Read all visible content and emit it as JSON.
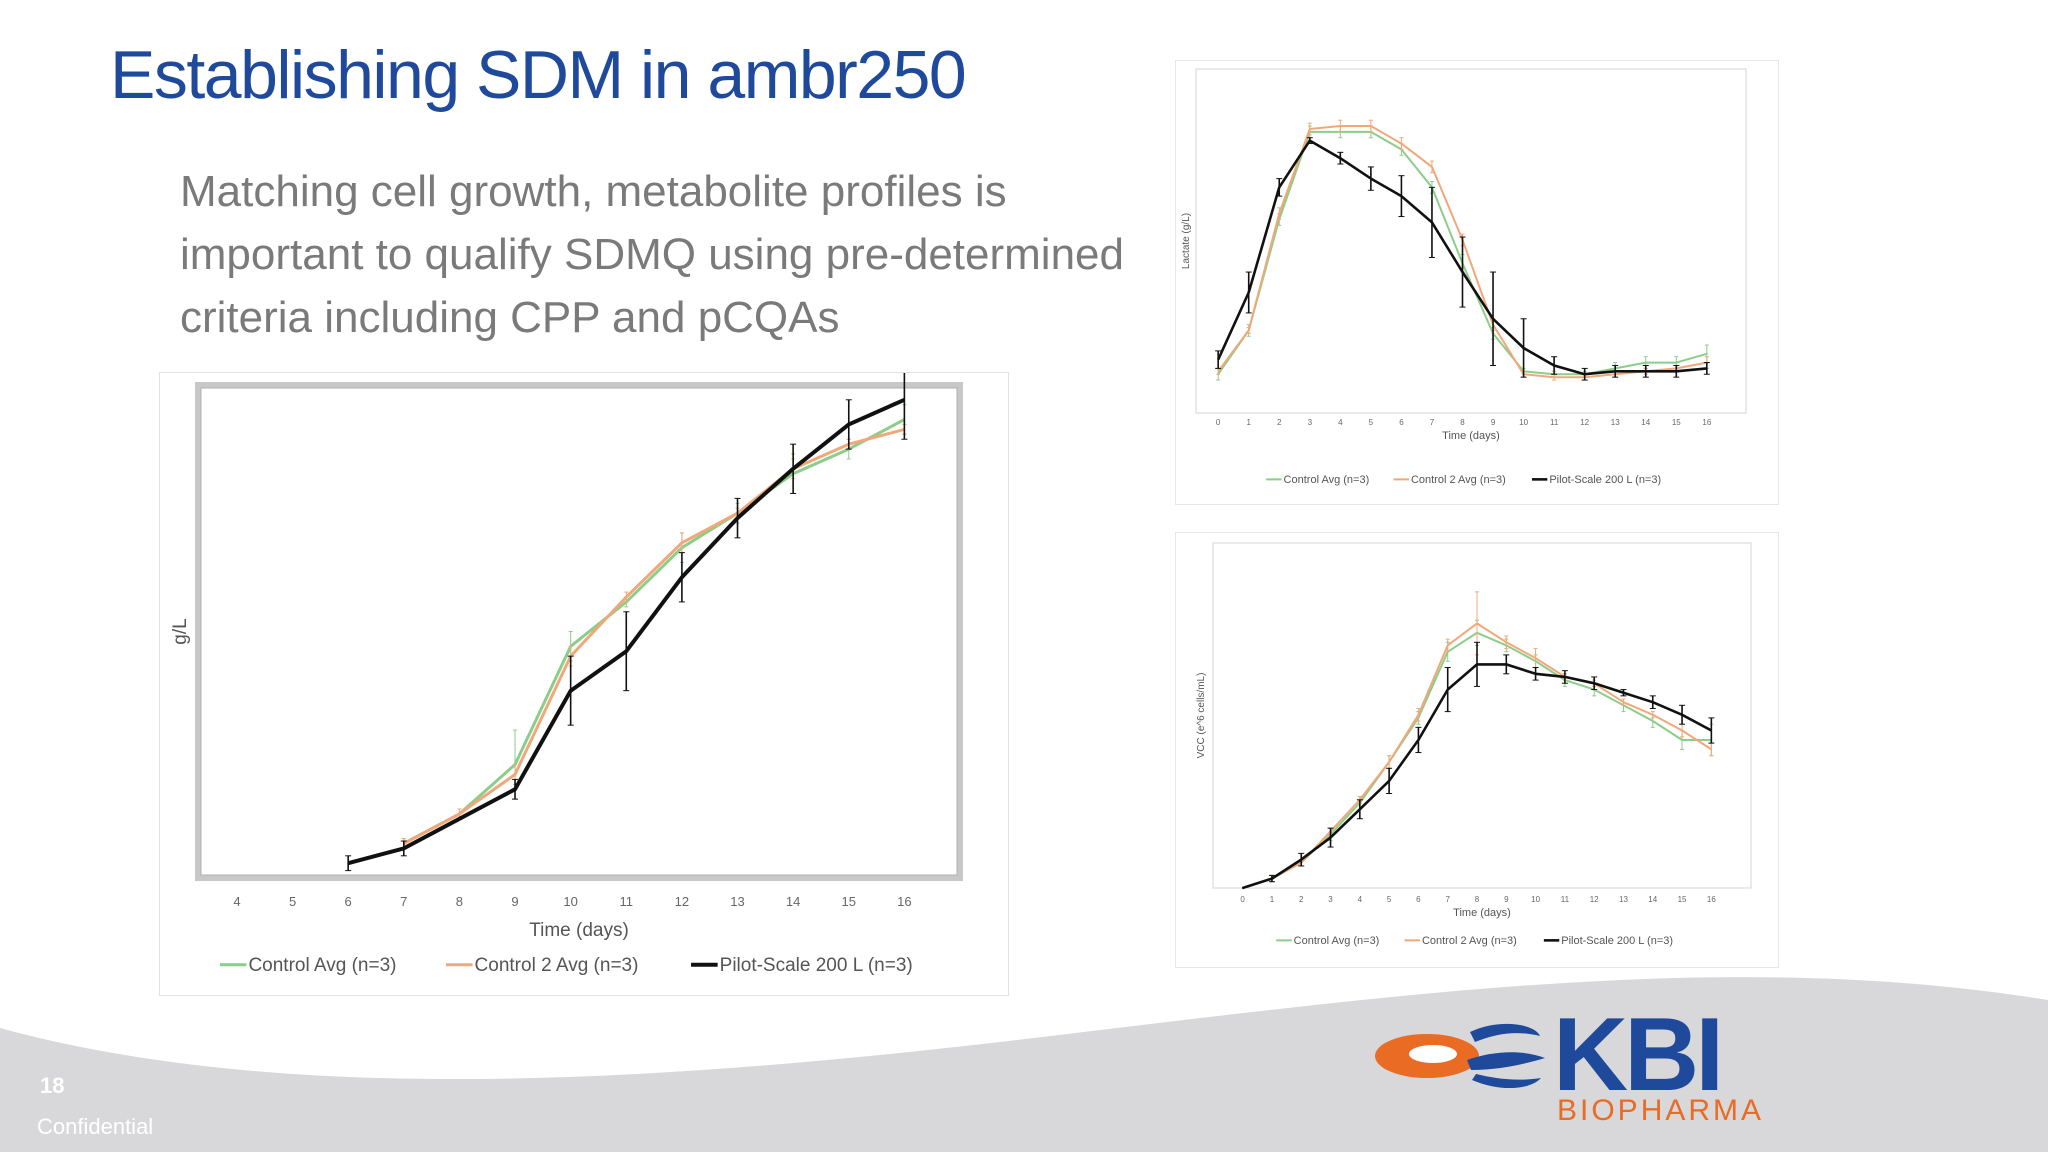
{
  "slide": {
    "title": "Establishing SDM in ambr250",
    "subtitle": "Matching cell growth, metabolite profiles is important to qualify SDMQ using pre-determined criteria including CPP and pCQAs",
    "page_number": "18",
    "confidential": "Confidential"
  },
  "logo": {
    "name": "KBI",
    "sub": "BIOPHARMA",
    "colors": {
      "blue": "#1f4a9c",
      "orange": "#e96b24"
    }
  },
  "series_colors": {
    "Control Avg (n=3)": "#8ccd8a",
    "Control 2 Avg (n=3)": "#f0a87a",
    "Pilot-Scale 200 L (n=3)": "#111111"
  },
  "chart_data": [
    {
      "id": "main",
      "type": "line",
      "title": "",
      "xlabel": "Time (days)",
      "ylabel": "g/L",
      "xlim": [
        3.3,
        17.0
      ],
      "ylim": [
        0,
        1.0
      ],
      "xticks": [
        4,
        5,
        6,
        7,
        8,
        9,
        10,
        11,
        12,
        13,
        14,
        15,
        16
      ],
      "yticks_shown": false,
      "grid": false,
      "legend": "bottom",
      "series": [
        {
          "name": "Control Avg (n=3)",
          "color": "#8ccd8a",
          "x": [
            7,
            8,
            9,
            10,
            11,
            12,
            13,
            14,
            15,
            16
          ],
          "y": [
            0.07,
            0.13,
            0.23,
            0.47,
            0.56,
            0.67,
            0.74,
            0.82,
            0.87,
            0.93
          ],
          "err": [
            0.01,
            0.01,
            0.07,
            0.03,
            0.01,
            0.03,
            0.02,
            0.04,
            0.02,
            0.03
          ]
        },
        {
          "name": "Control 2 Avg (n=3)",
          "color": "#f0a87a",
          "x": [
            7,
            8,
            9,
            10,
            11,
            12,
            13,
            14,
            15,
            16
          ],
          "y": [
            0.07,
            0.13,
            0.21,
            0.45,
            0.57,
            0.68,
            0.74,
            0.83,
            0.88,
            0.91
          ],
          "err": [
            0.01,
            0.01,
            0.02,
            0.02,
            0.01,
            0.02,
            0.01,
            0.02,
            0.01,
            0.01
          ]
        },
        {
          "name": "Pilot-Scale 200 L (n=3)",
          "color": "#111111",
          "x": [
            6,
            7,
            8,
            9,
            10,
            11,
            12,
            13,
            14,
            15,
            16
          ],
          "y": [
            0.03,
            0.06,
            0.12,
            0.18,
            0.38,
            0.46,
            0.61,
            0.73,
            0.83,
            0.92,
            0.97
          ],
          "err": [
            0.015,
            0.015,
            0.0,
            0.02,
            0.07,
            0.08,
            0.05,
            0.04,
            0.05,
            0.05,
            0.08
          ]
        }
      ]
    },
    {
      "id": "lactate",
      "type": "line",
      "title": "",
      "xlabel": "Time (days)",
      "ylabel": "Lactate (g/L)",
      "xlim": [
        -0.3,
        16.3
      ],
      "ylim": [
        0,
        1.0
      ],
      "xticks": [
        0,
        1,
        2,
        3,
        4,
        5,
        6,
        7,
        8,
        9,
        10,
        11,
        12,
        13,
        14,
        15,
        16
      ],
      "yticks_shown": false,
      "grid": false,
      "legend": "bottom",
      "series": [
        {
          "name": "Control Avg (n=3)",
          "color": "#8ccd8a",
          "x": [
            0,
            1,
            2,
            3,
            4,
            5,
            6,
            7,
            8,
            9,
            10,
            11,
            12,
            13,
            14,
            15,
            16
          ],
          "y": [
            0.03,
            0.18,
            0.56,
            0.86,
            0.86,
            0.86,
            0.8,
            0.67,
            0.41,
            0.17,
            0.04,
            0.03,
            0.03,
            0.05,
            0.07,
            0.07,
            0.1
          ],
          "err": [
            0.02,
            0.02,
            0.02,
            0.02,
            0.02,
            0.02,
            0.02,
            0.02,
            0.03,
            0.02,
            0.01,
            0.01,
            0.01,
            0.02,
            0.02,
            0.02,
            0.03
          ]
        },
        {
          "name": "Control 2 Avg (n=3)",
          "color": "#f0a87a",
          "x": [
            0,
            1,
            2,
            3,
            4,
            5,
            6,
            7,
            8,
            9,
            10,
            11,
            12,
            13,
            14,
            15,
            16
          ],
          "y": [
            0.04,
            0.18,
            0.58,
            0.87,
            0.88,
            0.88,
            0.82,
            0.74,
            0.49,
            0.2,
            0.03,
            0.02,
            0.02,
            0.03,
            0.04,
            0.05,
            0.07
          ],
          "err": [
            0.01,
            0.01,
            0.02,
            0.02,
            0.02,
            0.02,
            0.02,
            0.02,
            0.02,
            0.02,
            0.01,
            0.01,
            0.01,
            0.01,
            0.01,
            0.01,
            0.02
          ]
        },
        {
          "name": "Pilot-Scale 200 L (n=3)",
          "color": "#111111",
          "x": [
            0,
            1,
            2,
            3,
            4,
            5,
            6,
            7,
            8,
            9,
            10,
            11,
            12,
            13,
            14,
            15,
            16
          ],
          "y": [
            0.08,
            0.31,
            0.67,
            0.83,
            0.77,
            0.7,
            0.64,
            0.55,
            0.38,
            0.22,
            0.12,
            0.06,
            0.03,
            0.04,
            0.04,
            0.04,
            0.05
          ],
          "err": [
            0.03,
            0.07,
            0.03,
            0.01,
            0.02,
            0.04,
            0.07,
            0.12,
            0.12,
            0.16,
            0.1,
            0.03,
            0.02,
            0.02,
            0.02,
            0.02,
            0.02
          ]
        }
      ]
    },
    {
      "id": "vcc",
      "type": "line",
      "title": "",
      "xlabel": "Time (days)",
      "ylabel": "VCC (e^6 cells/mL)",
      "xlim": [
        -0.5,
        16.5
      ],
      "ylim": [
        0,
        1.0
      ],
      "xticks": [
        0,
        1,
        2,
        3,
        4,
        5,
        6,
        7,
        8,
        9,
        10,
        11,
        12,
        13,
        14,
        15,
        16
      ],
      "yticks_shown": false,
      "grid": false,
      "legend": "bottom",
      "series": [
        {
          "name": "Control Avg (n=3)",
          "color": "#8ccd8a",
          "x": [
            0,
            1,
            2,
            3,
            4,
            5,
            6,
            7,
            8,
            9,
            10,
            11,
            12,
            13,
            14,
            15,
            16
          ],
          "y": [
            0.0,
            0.03,
            0.08,
            0.17,
            0.27,
            0.4,
            0.54,
            0.75,
            0.81,
            0.77,
            0.72,
            0.66,
            0.63,
            0.58,
            0.53,
            0.47,
            0.47
          ],
          "err": [
            0.0,
            0.01,
            0.01,
            0.02,
            0.02,
            0.02,
            0.02,
            0.03,
            0.04,
            0.02,
            0.02,
            0.02,
            0.02,
            0.02,
            0.02,
            0.03,
            0.05
          ]
        },
        {
          "name": "Control 2 Avg (n=3)",
          "color": "#f0a87a",
          "x": [
            0,
            1,
            2,
            3,
            4,
            5,
            6,
            7,
            8,
            9,
            10,
            11,
            12,
            13,
            14,
            15,
            16
          ],
          "y": [
            0.0,
            0.03,
            0.08,
            0.18,
            0.28,
            0.4,
            0.55,
            0.77,
            0.84,
            0.78,
            0.73,
            0.67,
            0.65,
            0.59,
            0.55,
            0.5,
            0.44
          ],
          "err": [
            0.0,
            0.01,
            0.01,
            0.01,
            0.01,
            0.02,
            0.02,
            0.02,
            0.1,
            0.02,
            0.03,
            0.01,
            0.01,
            0.01,
            0.01,
            0.02,
            0.02
          ]
        },
        {
          "name": "Pilot-Scale 200 L (n=3)",
          "color": "#111111",
          "x": [
            0,
            1,
            2,
            3,
            4,
            5,
            6,
            7,
            8,
            9,
            10,
            11,
            12,
            13,
            14,
            15,
            16
          ],
          "y": [
            0.0,
            0.03,
            0.09,
            0.16,
            0.25,
            0.34,
            0.47,
            0.63,
            0.71,
            0.71,
            0.68,
            0.67,
            0.65,
            0.62,
            0.59,
            0.55,
            0.5
          ],
          "err": [
            0.0,
            0.01,
            0.02,
            0.03,
            0.03,
            0.04,
            0.04,
            0.07,
            0.07,
            0.03,
            0.02,
            0.02,
            0.02,
            0.01,
            0.02,
            0.03,
            0.04
          ]
        }
      ]
    }
  ]
}
